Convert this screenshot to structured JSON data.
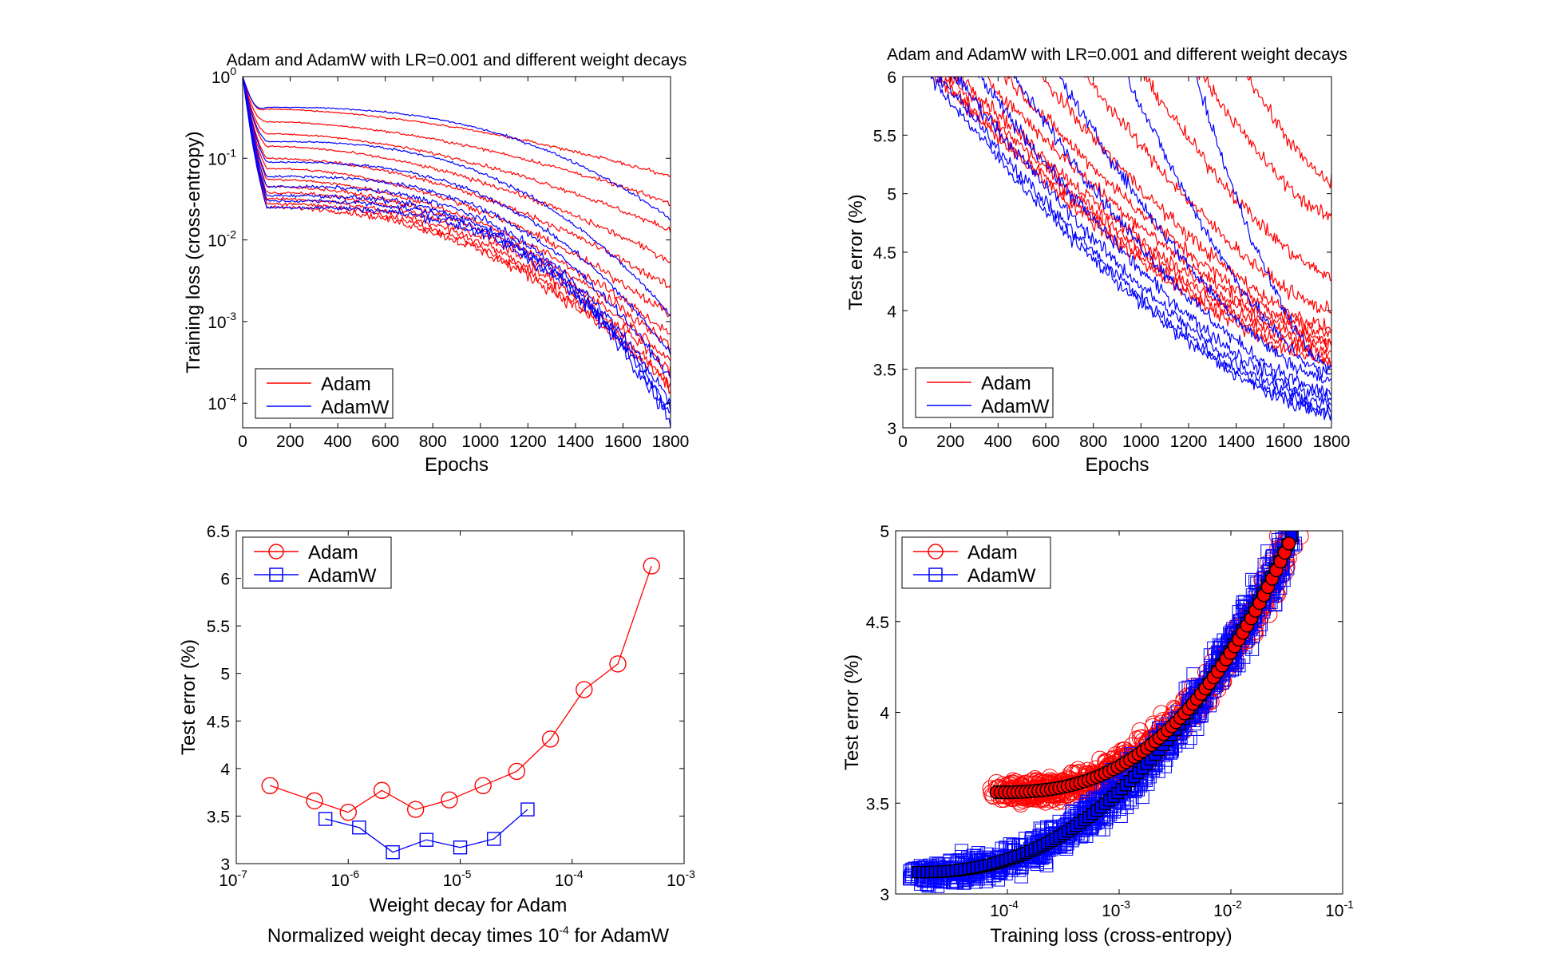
{
  "colors": {
    "adam": "#ff0000",
    "adamw": "#0000ff",
    "marker_fill_adam": "#ff0000",
    "marker_fill_adamw": "#0000ff",
    "marker_edge": "#000000"
  },
  "chart_data": [
    {
      "id": "train_loss",
      "type": "line",
      "title": "Adam and AdamW with LR=0.001 and different weight decays",
      "xlabel": "Epochs",
      "ylabel": "Training loss (cross-entropy)",
      "xlim": [
        0,
        1800
      ],
      "ylim": [
        5e-05,
        1
      ],
      "yscale": "log",
      "xticks": [
        "0",
        "200",
        "400",
        "600",
        "800",
        "1000",
        "1200",
        "1400",
        "1600",
        "1800"
      ],
      "yticks": [
        {
          "base": "10",
          "exp": "0"
        },
        {
          "base": "10",
          "exp": "-1"
        },
        {
          "base": "10",
          "exp": "-2"
        },
        {
          "base": "10",
          "exp": "-3"
        },
        {
          "base": "10",
          "exp": "-4"
        }
      ],
      "legend": [
        "Adam",
        "AdamW"
      ],
      "legend_position": "bottom-left",
      "series": [
        {
          "name": "Adam",
          "final_values": [
            0.06,
            0.028,
            0.013,
            0.0055,
            0.0026,
            0.0012,
            0.0007,
            0.0005,
            0.00035,
            0.00025,
            0.00018,
            0.00015
          ]
        },
        {
          "name": "AdamW",
          "final_values": [
            0.018,
            0.0012,
            0.0004,
            0.0002,
            0.0001,
            8e-05,
            7e-05,
            6e-05
          ]
        }
      ]
    },
    {
      "id": "test_error_epochs",
      "type": "line",
      "title": "Adam and AdamW with LR=0.001 and different weight decays",
      "xlabel": "Epochs",
      "ylabel": "Test error (%)",
      "xlim": [
        0,
        1800
      ],
      "ylim": [
        3,
        6
      ],
      "xticks": [
        "0",
        "200",
        "400",
        "600",
        "800",
        "1000",
        "1200",
        "1400",
        "1600",
        "1800"
      ],
      "yticks": [
        "6",
        "5.5",
        "5",
        "4.5",
        "4",
        "3.5",
        "3"
      ],
      "legend": [
        "Adam",
        "AdamW"
      ],
      "legend_position": "bottom-left",
      "series": [
        {
          "name": "Adam",
          "final_values": [
            5.1,
            4.8,
            4.3,
            4.0,
            3.85,
            3.8,
            3.75,
            3.7,
            3.65,
            3.6,
            3.55
          ]
        },
        {
          "name": "AdamW",
          "final_values": [
            3.5,
            3.45,
            3.4,
            3.3,
            3.25,
            3.2,
            3.15,
            3.12
          ]
        }
      ]
    },
    {
      "id": "test_error_wd",
      "type": "line",
      "xlabel": "Weight decay for Adam",
      "xlabel2": {
        "pre": "Normalized weight decay times 10",
        "exp": "-4",
        "post": " for AdamW"
      },
      "ylabel": "Test error (%)",
      "xscale": "log",
      "xlim": [
        1e-07,
        0.001
      ],
      "ylim": [
        3,
        6.5
      ],
      "xticks": [
        {
          "base": "10",
          "exp": "-7"
        },
        {
          "base": "10",
          "exp": "-6"
        },
        {
          "base": "10",
          "exp": "-5"
        },
        {
          "base": "10",
          "exp": "-4"
        },
        {
          "base": "10",
          "exp": "-3"
        }
      ],
      "yticks": [
        "6.5",
        "6",
        "5.5",
        "5",
        "4.5",
        "4",
        "3.5",
        "3"
      ],
      "legend": [
        "Adam",
        "AdamW"
      ],
      "legend_position": "top-left",
      "series": [
        {
          "name": "Adam",
          "marker": "circle",
          "x": [
            2e-07,
            5e-07,
            1e-06,
            2e-06,
            4e-06,
            8e-06,
            1.6e-05,
            3.2e-05,
            6.4e-05,
            0.000128,
            0.000256,
            0.000512
          ],
          "y": [
            3.82,
            3.66,
            3.54,
            3.77,
            3.57,
            3.67,
            3.82,
            3.97,
            4.31,
            4.83,
            5.1,
            6.13
          ]
        },
        {
          "name": "AdamW",
          "marker": "square",
          "x": [
            6.25e-07,
            1.25e-06,
            2.5e-06,
            5e-06,
            1e-05,
            2e-05,
            4e-05
          ],
          "y": [
            3.47,
            3.38,
            3.12,
            3.25,
            3.17,
            3.26,
            3.57
          ]
        }
      ]
    },
    {
      "id": "test_error_vs_loss",
      "type": "scatter",
      "xlabel": "Training loss (cross-entropy)",
      "ylabel": "Test error (%)",
      "xscale": "log",
      "xlim": [
        1e-05,
        0.1
      ],
      "ylim": [
        3,
        5
      ],
      "xticks": [
        {
          "base": "10",
          "exp": "-4"
        },
        {
          "base": "10",
          "exp": "-3"
        },
        {
          "base": "10",
          "exp": "-2"
        },
        {
          "base": "10",
          "exp": "-1"
        }
      ],
      "yticks": [
        "5",
        "4.5",
        "4",
        "3.5",
        "3"
      ],
      "legend": [
        "Adam",
        "AdamW"
      ],
      "legend_position": "top-left",
      "series": [
        {
          "name": "Adam",
          "marker": "circle",
          "trend_start_x": 8e-05,
          "trend_start_y": 3.56,
          "trend_end_x": 0.033,
          "trend_end_y": 4.93
        },
        {
          "name": "AdamW",
          "marker": "square",
          "trend_start_x": 1.6e-05,
          "trend_start_y": 3.12,
          "trend_end_x": 0.035,
          "trend_end_y": 4.97
        }
      ]
    }
  ]
}
